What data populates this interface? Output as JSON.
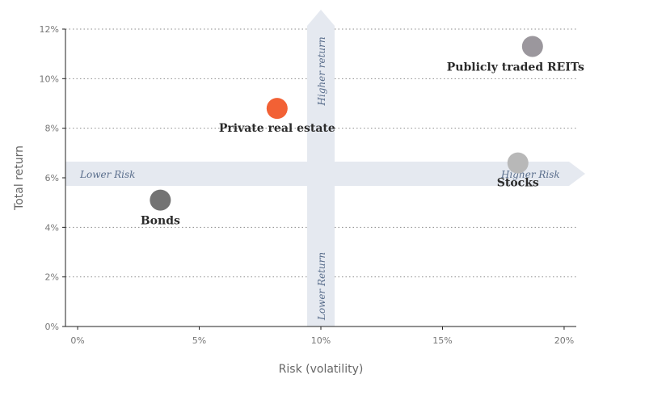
{
  "colors": {
    "arrow": "#e5e9f0",
    "arrow_text": "#5a6e8c",
    "axis": "#222222",
    "tick_text": "#777777"
  },
  "chart_data": {
    "type": "scatter",
    "xlabel": "Risk (volatility)",
    "ylabel": "Total return",
    "xlim": [
      -0.5,
      20.5
    ],
    "ylim": [
      0,
      12
    ],
    "x_ticks": [
      0,
      5,
      10,
      15,
      20
    ],
    "x_tick_labels": [
      "0%",
      "5%",
      "10%",
      "15%",
      "20%"
    ],
    "y_ticks": [
      0,
      2,
      4,
      6,
      8,
      10,
      12
    ],
    "y_tick_labels": [
      "0%",
      "2%",
      "4%",
      "6%",
      "8%",
      "10%",
      "12%"
    ],
    "grid": "horizontal dotted",
    "points": [
      {
        "name": "Bonds",
        "x": 3.4,
        "y": 5.1,
        "color": "#737373"
      },
      {
        "name": "Private real estate",
        "x": 8.2,
        "y": 8.8,
        "color": "#f26135"
      },
      {
        "name": "Publicly traded REITs",
        "x": 18.7,
        "y": 11.3,
        "color": "#9b979d"
      },
      {
        "name": "Stocks",
        "x": 18.1,
        "y": 6.6,
        "color": "#b8b8b8"
      }
    ],
    "annotations": {
      "lower_risk": "Lower Risk",
      "higher_risk": "Higher Risk",
      "higher_return": "Higher return",
      "lower_return": "Lower Return"
    }
  }
}
